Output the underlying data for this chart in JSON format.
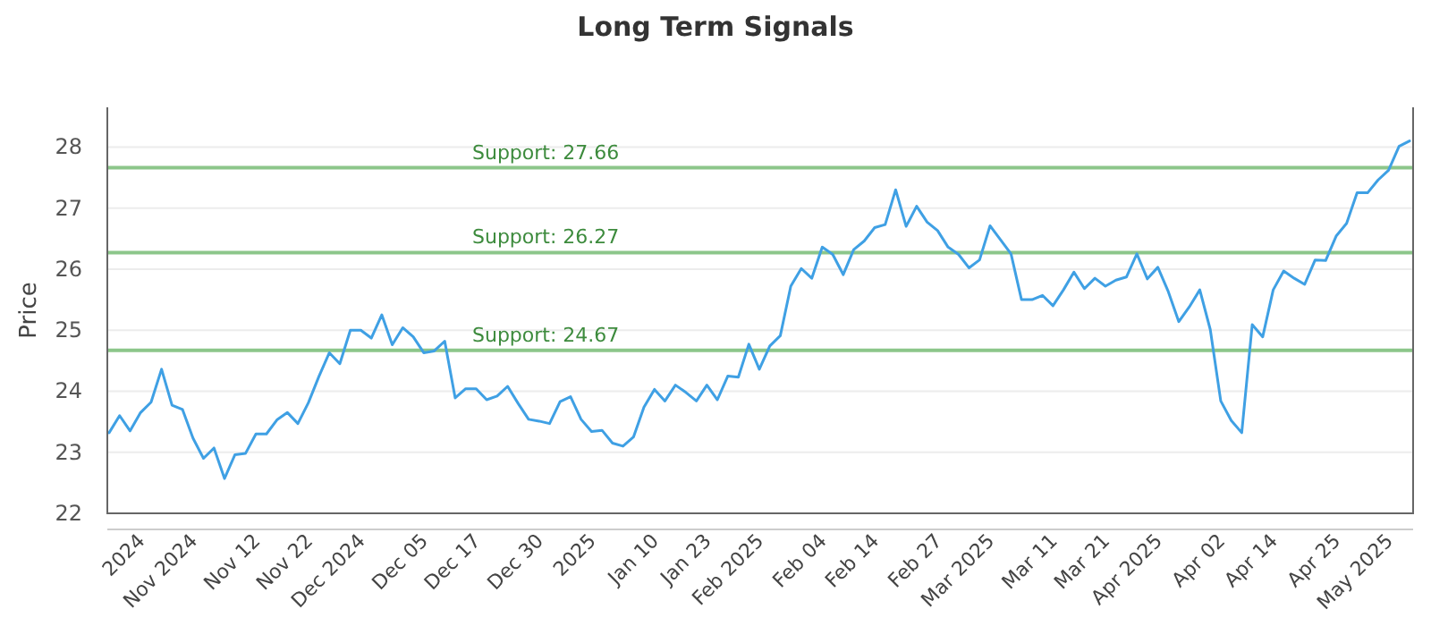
{
  "chart_data": {
    "type": "line",
    "title": "Long Term Signals",
    "ylabel": "Price",
    "categories": [
      null,
      null,
      null,
      "2024",
      null,
      null,
      null,
      null,
      "Nov 2024",
      null,
      null,
      null,
      null,
      null,
      "Nov 12",
      null,
      null,
      null,
      null,
      "Nov 22",
      null,
      null,
      null,
      null,
      "Dec 2024",
      null,
      null,
      null,
      null,
      null,
      "Dec 05",
      null,
      null,
      null,
      null,
      "Dec 17",
      null,
      null,
      null,
      null,
      null,
      "Dec 30",
      null,
      null,
      null,
      null,
      "2025",
      null,
      null,
      null,
      null,
      null,
      "Jan 10",
      null,
      null,
      null,
      null,
      "Jan 23",
      null,
      null,
      null,
      null,
      "Feb 2025",
      null,
      null,
      null,
      null,
      null,
      "Feb 04",
      null,
      null,
      null,
      null,
      "Feb 14",
      null,
      null,
      null,
      null,
      null,
      "Feb 27",
      null,
      null,
      null,
      null,
      "Mar 2025",
      null,
      null,
      null,
      null,
      null,
      "Mar 11",
      null,
      null,
      null,
      null,
      "Mar 21",
      null,
      null,
      null,
      null,
      "Apr 2025",
      null,
      null,
      null,
      null,
      null,
      "Apr 02",
      null,
      null,
      null,
      null,
      "Apr 14",
      null,
      null,
      null,
      null,
      null,
      "Apr 25",
      null,
      null,
      null,
      null,
      "May 2025",
      null,
      null
    ],
    "series": [
      {
        "color": "#3fa0e4",
        "values": [
          23.32,
          23.6,
          23.35,
          23.65,
          23.82,
          24.36,
          23.77,
          23.7,
          23.23,
          22.9,
          23.07,
          22.57,
          22.96,
          22.98,
          23.3,
          23.3,
          23.53,
          23.65,
          23.47,
          23.81,
          24.24,
          24.63,
          24.45,
          25.0,
          25.0,
          24.87,
          25.25,
          24.76,
          25.04,
          24.89,
          24.63,
          24.66,
          24.82,
          23.89,
          24.04,
          24.04,
          23.86,
          23.92,
          24.08,
          23.8,
          23.54,
          23.51,
          23.47,
          23.83,
          23.91,
          23.54,
          23.34,
          23.36,
          23.15,
          23.1,
          23.25,
          23.74,
          24.03,
          23.84,
          24.1,
          23.98,
          23.84,
          24.1,
          23.86,
          24.25,
          24.23,
          24.77,
          24.36,
          24.74,
          24.91,
          25.72,
          26.01,
          25.85,
          26.36,
          26.24,
          25.91,
          26.32,
          26.46,
          26.68,
          26.73,
          27.3,
          26.7,
          27.03,
          26.77,
          26.63,
          26.36,
          26.24,
          26.02,
          26.15,
          26.71,
          26.48,
          26.25,
          25.5,
          25.5,
          25.57,
          25.4,
          25.66,
          25.95,
          25.68,
          25.85,
          25.72,
          25.82,
          25.87,
          26.25,
          25.84,
          26.03,
          25.63,
          25.14,
          25.38,
          25.66,
          25.01,
          23.84,
          23.52,
          23.32,
          25.09,
          24.89,
          25.66,
          25.97,
          25.85,
          25.75,
          26.15,
          26.14,
          26.54,
          26.75,
          27.25,
          27.25,
          27.46,
          27.62,
          28.01,
          28.1
        ]
      }
    ],
    "ylim": [
      22,
      28.65
    ],
    "yticks": [
      22,
      23,
      24,
      25,
      26,
      27,
      28
    ],
    "grid": "y",
    "marker": "none",
    "line_style": "solid",
    "ref_lines": [
      {
        "axis": "y",
        "value": 27.66,
        "label": "Support: 27.66",
        "color": "#8cc68a"
      },
      {
        "axis": "y",
        "value": 26.27,
        "label": "Support: 26.27",
        "color": "#8cc68a"
      },
      {
        "axis": "y",
        "value": 24.67,
        "label": "Support: 24.67",
        "color": "#8cc68a"
      }
    ]
  }
}
